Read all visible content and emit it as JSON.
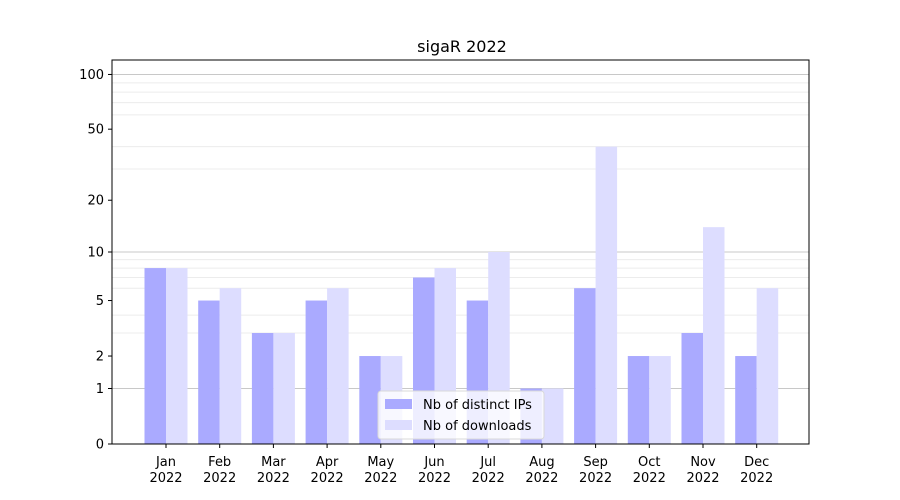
{
  "chart_data": {
    "type": "bar",
    "title": "sigaR 2022",
    "xlabel": "",
    "ylabel": "",
    "yscale": "log(1+y)",
    "ylim": [
      0,
      120
    ],
    "yticks": [
      0,
      1,
      2,
      5,
      10,
      20,
      50,
      100
    ],
    "categories": [
      [
        "Jan",
        "2022"
      ],
      [
        "Feb",
        "2022"
      ],
      [
        "Mar",
        "2022"
      ],
      [
        "Apr",
        "2022"
      ],
      [
        "May",
        "2022"
      ],
      [
        "Jun",
        "2022"
      ],
      [
        "Jul",
        "2022"
      ],
      [
        "Aug",
        "2022"
      ],
      [
        "Sep",
        "2022"
      ],
      [
        "Oct",
        "2022"
      ],
      [
        "Nov",
        "2022"
      ],
      [
        "Dec",
        "2022"
      ]
    ],
    "series": [
      {
        "name": "Nb of distinct IPs",
        "color": "#aaaaff",
        "values": [
          8,
          5,
          3,
          5,
          2,
          7,
          5,
          1,
          6,
          2,
          3,
          2
        ]
      },
      {
        "name": "Nb of downloads",
        "color": "#ddddff",
        "values": [
          8,
          6,
          3,
          6,
          2,
          8,
          10,
          1,
          40,
          2,
          14,
          6
        ]
      }
    ],
    "grid": true,
    "legend_position": "lower-center"
  }
}
